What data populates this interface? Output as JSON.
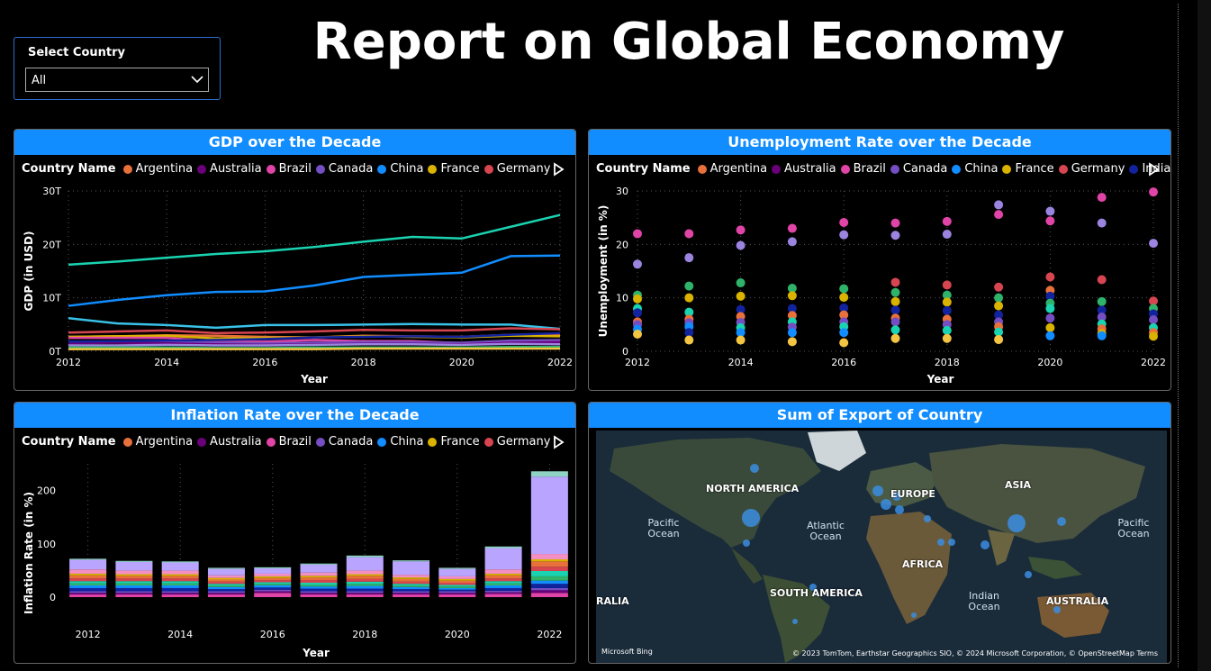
{
  "slicer": {
    "label": "Select Country",
    "value": "All"
  },
  "page_title": "Report on Global Economy",
  "legend_title": "Country Name",
  "legend_countries": [
    {
      "name": "Argentina",
      "color": "#e8703a"
    },
    {
      "name": "Australia",
      "color": "#6b007b"
    },
    {
      "name": "Brazil",
      "color": "#e044a7"
    },
    {
      "name": "Canada",
      "color": "#744ec2"
    },
    {
      "name": "China",
      "color": "#118dff"
    },
    {
      "name": "France",
      "color": "#d9b300"
    },
    {
      "name": "Germany",
      "color": "#d64550"
    },
    {
      "name": "India",
      "color": "#12239e"
    }
  ],
  "chart_data": [
    {
      "id": "gdp",
      "type": "line",
      "title": "GDP over the Decade",
      "xlabel": "Year",
      "ylabel": "GDP (in USD)",
      "x": [
        2012,
        2013,
        2014,
        2015,
        2016,
        2017,
        2018,
        2019,
        2020,
        2021,
        2022
      ],
      "x_ticks": [
        "2012",
        "2014",
        "2016",
        "2018",
        "2020",
        "2022"
      ],
      "y_ticks": [
        "0T",
        "10T",
        "20T",
        "30T"
      ],
      "ylim": [
        0,
        30
      ],
      "grid": true,
      "series": [
        {
          "color": "#1ad3b0",
          "values": [
            16.2,
            16.8,
            17.5,
            18.2,
            18.7,
            19.5,
            20.5,
            21.4,
            21.1,
            23.3,
            25.5
          ]
        },
        {
          "color": "#118dff",
          "values": [
            8.5,
            9.6,
            10.5,
            11.1,
            11.2,
            12.3,
            13.9,
            14.3,
            14.7,
            17.8,
            17.9
          ]
        },
        {
          "color": "#39c1e8",
          "values": [
            6.2,
            5.2,
            4.9,
            4.4,
            4.9,
            4.9,
            5.0,
            5.1,
            5.0,
            5.0,
            4.2
          ]
        },
        {
          "color": "#d64550",
          "values": [
            3.5,
            3.7,
            3.9,
            3.4,
            3.5,
            3.7,
            4.0,
            3.9,
            3.9,
            4.3,
            4.1
          ]
        },
        {
          "color": "#e8703a",
          "values": [
            2.7,
            2.8,
            3.0,
            2.9,
            2.7,
            2.6,
            2.9,
            2.8,
            2.7,
            3.1,
            3.1
          ]
        },
        {
          "color": "#d9b300",
          "values": [
            2.7,
            2.8,
            2.9,
            2.4,
            2.5,
            2.6,
            2.8,
            2.7,
            2.6,
            2.9,
            2.8
          ]
        },
        {
          "color": "#e044a7",
          "values": [
            2.5,
            2.5,
            2.5,
            1.8,
            1.8,
            2.1,
            1.9,
            1.9,
            1.5,
            1.7,
            1.9
          ]
        },
        {
          "color": "#744ec2",
          "values": [
            1.8,
            1.8,
            1.8,
            1.6,
            1.5,
            1.6,
            1.7,
            1.7,
            1.6,
            2.0,
            2.1
          ]
        },
        {
          "color": "#6b007b",
          "values": [
            1.5,
            1.6,
            1.5,
            1.3,
            1.2,
            1.3,
            1.4,
            1.4,
            1.3,
            1.6,
            1.7
          ]
        },
        {
          "color": "#12239e",
          "values": [
            1.8,
            1.9,
            2.0,
            2.1,
            2.3,
            2.6,
            2.7,
            2.8,
            2.7,
            3.1,
            3.4
          ]
        },
        {
          "color": "#9b84e0",
          "values": [
            1.1,
            1.1,
            1.2,
            1.1,
            1.1,
            1.2,
            1.3,
            1.3,
            1.2,
            1.4,
            1.3
          ]
        },
        {
          "color": "#2fb36b",
          "values": [
            0.7,
            0.7,
            0.7,
            0.6,
            0.6,
            0.7,
            0.7,
            0.7,
            0.7,
            0.8,
            0.8
          ]
        },
        {
          "color": "#f4c542",
          "values": [
            0.4,
            0.4,
            0.4,
            0.4,
            0.4,
            0.4,
            0.5,
            0.5,
            0.5,
            0.5,
            0.5
          ]
        }
      ]
    },
    {
      "id": "unemployment",
      "type": "scatter",
      "title": "Unemployment Rate over the Decade",
      "xlabel": "Year",
      "ylabel": "Unemployment (in %)",
      "x_ticks": [
        "2012",
        "2014",
        "2016",
        "2018",
        "2020",
        "2022"
      ],
      "y_ticks": [
        "0",
        "10",
        "20",
        "30"
      ],
      "ylim": [
        0,
        30
      ],
      "grid": true,
      "points": [
        {
          "x": 2012,
          "y": 22.0,
          "color": "#e044a7"
        },
        {
          "x": 2012,
          "y": 16.3,
          "color": "#9b84e0"
        },
        {
          "x": 2012,
          "y": 10.5,
          "color": "#2fb36b"
        },
        {
          "x": 2012,
          "y": 9.8,
          "color": "#d9b300"
        },
        {
          "x": 2012,
          "y": 8.0,
          "color": "#1ad3b0"
        },
        {
          "x": 2012,
          "y": 7.2,
          "color": "#12239e"
        },
        {
          "x": 2012,
          "y": 5.5,
          "color": "#e8703a"
        },
        {
          "x": 2012,
          "y": 5.0,
          "color": "#744ec2"
        },
        {
          "x": 2012,
          "y": 4.1,
          "color": "#118dff"
        },
        {
          "x": 2012,
          "y": 3.2,
          "color": "#f4c542"
        },
        {
          "x": 2013,
          "y": 22.0,
          "color": "#e044a7"
        },
        {
          "x": 2013,
          "y": 17.5,
          "color": "#9b84e0"
        },
        {
          "x": 2013,
          "y": 12.2,
          "color": "#2fb36b"
        },
        {
          "x": 2013,
          "y": 10.0,
          "color": "#d9b300"
        },
        {
          "x": 2013,
          "y": 7.3,
          "color": "#1ad3b0"
        },
        {
          "x": 2013,
          "y": 6.0,
          "color": "#e8703a"
        },
        {
          "x": 2013,
          "y": 5.3,
          "color": "#744ec2"
        },
        {
          "x": 2013,
          "y": 4.6,
          "color": "#118dff"
        },
        {
          "x": 2013,
          "y": 3.5,
          "color": "#12239e"
        },
        {
          "x": 2013,
          "y": 2.1,
          "color": "#f4c542"
        },
        {
          "x": 2014,
          "y": 22.7,
          "color": "#e044a7"
        },
        {
          "x": 2014,
          "y": 19.8,
          "color": "#9b84e0"
        },
        {
          "x": 2014,
          "y": 12.8,
          "color": "#2fb36b"
        },
        {
          "x": 2014,
          "y": 10.3,
          "color": "#d9b300"
        },
        {
          "x": 2014,
          "y": 7.8,
          "color": "#12239e"
        },
        {
          "x": 2014,
          "y": 6.5,
          "color": "#e8703a"
        },
        {
          "x": 2014,
          "y": 5.4,
          "color": "#744ec2"
        },
        {
          "x": 2014,
          "y": 4.4,
          "color": "#1ad3b0"
        },
        {
          "x": 2014,
          "y": 3.5,
          "color": "#118dff"
        },
        {
          "x": 2014,
          "y": 2.1,
          "color": "#f4c542"
        },
        {
          "x": 2015,
          "y": 23.0,
          "color": "#e044a7"
        },
        {
          "x": 2015,
          "y": 20.5,
          "color": "#9b84e0"
        },
        {
          "x": 2015,
          "y": 11.8,
          "color": "#2fb36b"
        },
        {
          "x": 2015,
          "y": 10.4,
          "color": "#d9b300"
        },
        {
          "x": 2015,
          "y": 8.0,
          "color": "#12239e"
        },
        {
          "x": 2015,
          "y": 6.7,
          "color": "#e8703a"
        },
        {
          "x": 2015,
          "y": 5.5,
          "color": "#1ad3b0"
        },
        {
          "x": 2015,
          "y": 4.5,
          "color": "#744ec2"
        },
        {
          "x": 2015,
          "y": 3.5,
          "color": "#118dff"
        },
        {
          "x": 2015,
          "y": 1.8,
          "color": "#f4c542"
        },
        {
          "x": 2016,
          "y": 24.1,
          "color": "#e044a7"
        },
        {
          "x": 2016,
          "y": 21.8,
          "color": "#9b84e0"
        },
        {
          "x": 2016,
          "y": 11.7,
          "color": "#2fb36b"
        },
        {
          "x": 2016,
          "y": 10.1,
          "color": "#d9b300"
        },
        {
          "x": 2016,
          "y": 8.1,
          "color": "#12239e"
        },
        {
          "x": 2016,
          "y": 6.8,
          "color": "#e8703a"
        },
        {
          "x": 2016,
          "y": 5.5,
          "color": "#744ec2"
        },
        {
          "x": 2016,
          "y": 4.6,
          "color": "#1ad3b0"
        },
        {
          "x": 2016,
          "y": 3.5,
          "color": "#118dff"
        },
        {
          "x": 2016,
          "y": 1.6,
          "color": "#f4c542"
        },
        {
          "x": 2017,
          "y": 24.0,
          "color": "#e044a7"
        },
        {
          "x": 2017,
          "y": 21.7,
          "color": "#9b84e0"
        },
        {
          "x": 2017,
          "y": 12.9,
          "color": "#d64550"
        },
        {
          "x": 2017,
          "y": 11.0,
          "color": "#2fb36b"
        },
        {
          "x": 2017,
          "y": 9.3,
          "color": "#d9b300"
        },
        {
          "x": 2017,
          "y": 7.7,
          "color": "#12239e"
        },
        {
          "x": 2017,
          "y": 6.2,
          "color": "#e8703a"
        },
        {
          "x": 2017,
          "y": 5.5,
          "color": "#744ec2"
        },
        {
          "x": 2017,
          "y": 4.0,
          "color": "#1ad3b0"
        },
        {
          "x": 2017,
          "y": 2.4,
          "color": "#f4c542"
        },
        {
          "x": 2018,
          "y": 24.3,
          "color": "#e044a7"
        },
        {
          "x": 2018,
          "y": 21.9,
          "color": "#9b84e0"
        },
        {
          "x": 2018,
          "y": 12.4,
          "color": "#d64550"
        },
        {
          "x": 2018,
          "y": 10.5,
          "color": "#2fb36b"
        },
        {
          "x": 2018,
          "y": 9.2,
          "color": "#d9b300"
        },
        {
          "x": 2018,
          "y": 7.6,
          "color": "#12239e"
        },
        {
          "x": 2018,
          "y": 6.0,
          "color": "#e8703a"
        },
        {
          "x": 2018,
          "y": 5.0,
          "color": "#744ec2"
        },
        {
          "x": 2018,
          "y": 3.9,
          "color": "#1ad3b0"
        },
        {
          "x": 2018,
          "y": 2.4,
          "color": "#f4c542"
        },
        {
          "x": 2019,
          "y": 27.4,
          "color": "#9b84e0"
        },
        {
          "x": 2019,
          "y": 25.6,
          "color": "#e044a7"
        },
        {
          "x": 2019,
          "y": 12.0,
          "color": "#d64550"
        },
        {
          "x": 2019,
          "y": 10.0,
          "color": "#2fb36b"
        },
        {
          "x": 2019,
          "y": 8.5,
          "color": "#d9b300"
        },
        {
          "x": 2019,
          "y": 6.8,
          "color": "#12239e"
        },
        {
          "x": 2019,
          "y": 5.5,
          "color": "#744ec2"
        },
        {
          "x": 2019,
          "y": 4.6,
          "color": "#e8703a"
        },
        {
          "x": 2019,
          "y": 3.6,
          "color": "#1ad3b0"
        },
        {
          "x": 2019,
          "y": 2.2,
          "color": "#f4c542"
        },
        {
          "x": 2020,
          "y": 26.2,
          "color": "#9b84e0"
        },
        {
          "x": 2020,
          "y": 24.4,
          "color": "#e044a7"
        },
        {
          "x": 2020,
          "y": 13.9,
          "color": "#d64550"
        },
        {
          "x": 2020,
          "y": 11.4,
          "color": "#e8703a"
        },
        {
          "x": 2020,
          "y": 10.3,
          "color": "#12239e"
        },
        {
          "x": 2020,
          "y": 9.0,
          "color": "#2fb36b"
        },
        {
          "x": 2020,
          "y": 8.0,
          "color": "#1ad3b0"
        },
        {
          "x": 2020,
          "y": 6.2,
          "color": "#744ec2"
        },
        {
          "x": 2020,
          "y": 4.4,
          "color": "#d9b300"
        },
        {
          "x": 2020,
          "y": 2.9,
          "color": "#118dff"
        },
        {
          "x": 2021,
          "y": 28.8,
          "color": "#e044a7"
        },
        {
          "x": 2021,
          "y": 24.0,
          "color": "#9b84e0"
        },
        {
          "x": 2021,
          "y": 13.4,
          "color": "#d64550"
        },
        {
          "x": 2021,
          "y": 9.3,
          "color": "#2fb36b"
        },
        {
          "x": 2021,
          "y": 7.7,
          "color": "#12239e"
        },
        {
          "x": 2021,
          "y": 6.4,
          "color": "#744ec2"
        },
        {
          "x": 2021,
          "y": 5.1,
          "color": "#1ad3b0"
        },
        {
          "x": 2021,
          "y": 4.2,
          "color": "#e8703a"
        },
        {
          "x": 2021,
          "y": 3.3,
          "color": "#d9b300"
        },
        {
          "x": 2021,
          "y": 2.9,
          "color": "#118dff"
        },
        {
          "x": 2022,
          "y": 29.8,
          "color": "#e044a7"
        },
        {
          "x": 2022,
          "y": 20.2,
          "color": "#9b84e0"
        },
        {
          "x": 2022,
          "y": 9.4,
          "color": "#d64550"
        },
        {
          "x": 2022,
          "y": 8.0,
          "color": "#2fb36b"
        },
        {
          "x": 2022,
          "y": 7.0,
          "color": "#12239e"
        },
        {
          "x": 2022,
          "y": 5.9,
          "color": "#744ec2"
        },
        {
          "x": 2022,
          "y": 4.4,
          "color": "#1ad3b0"
        },
        {
          "x": 2022,
          "y": 3.5,
          "color": "#e8703a"
        },
        {
          "x": 2022,
          "y": 2.8,
          "color": "#d9b300"
        }
      ]
    },
    {
      "id": "inflation",
      "type": "bar",
      "stacked": true,
      "title": "Inflation Rate over the Decade",
      "xlabel": "Year",
      "ylabel": "Inflation Rate (in %)",
      "categories": [
        2012,
        2013,
        2014,
        2015,
        2016,
        2017,
        2018,
        2019,
        2020,
        2021,
        2022
      ],
      "x_ticks": [
        "2012",
        "2014",
        "2016",
        "2018",
        "2020",
        "2022"
      ],
      "y_ticks": [
        "0",
        "100",
        "200"
      ],
      "ylim": [
        0,
        250
      ],
      "grid": true,
      "series": [
        {
          "color": "#e044a7",
          "values": [
            5,
            5,
            5,
            5,
            8,
            5,
            5,
            5,
            5,
            6,
            8
          ]
        },
        {
          "color": "#6b007b",
          "values": [
            3,
            3,
            3,
            3,
            3,
            3,
            3,
            3,
            3,
            3,
            5
          ]
        },
        {
          "color": "#744ec2",
          "values": [
            3,
            3,
            3,
            3,
            3,
            3,
            3,
            3,
            3,
            3,
            4
          ]
        },
        {
          "color": "#12239e",
          "values": [
            6,
            6,
            6,
            4,
            4,
            5,
            5,
            4,
            3,
            5,
            8
          ]
        },
        {
          "color": "#118dff",
          "values": [
            5,
            5,
            5,
            4,
            4,
            4,
            5,
            4,
            3,
            5,
            6
          ]
        },
        {
          "color": "#2fb36b",
          "values": [
            4,
            4,
            4,
            3,
            3,
            3,
            4,
            3,
            3,
            4,
            8
          ]
        },
        {
          "color": "#1ad3b0",
          "values": [
            4,
            4,
            4,
            3,
            3,
            4,
            4,
            3,
            3,
            4,
            10
          ]
        },
        {
          "color": "#d64550",
          "values": [
            5,
            5,
            5,
            4,
            4,
            5,
            5,
            4,
            4,
            5,
            8
          ]
        },
        {
          "color": "#e8703a",
          "values": [
            6,
            5,
            5,
            4,
            4,
            5,
            6,
            5,
            4,
            6,
            10
          ]
        },
        {
          "color": "#d9b300",
          "values": [
            3,
            3,
            3,
            3,
            3,
            3,
            3,
            3,
            3,
            3,
            4
          ]
        },
        {
          "color": "#f48fc4",
          "values": [
            8,
            7,
            7,
            5,
            5,
            6,
            7,
            5,
            5,
            8,
            10
          ]
        },
        {
          "color": "#b9a4ff",
          "values": [
            18,
            16,
            15,
            12,
            10,
            15,
            25,
            25,
            14,
            40,
            145
          ]
        },
        {
          "color": "#8fd3c4",
          "values": [
            2,
            2,
            2,
            2,
            2,
            2,
            3,
            2,
            2,
            3,
            10
          ]
        }
      ]
    }
  ],
  "map": {
    "title": "Sum of Export of Country",
    "labels": {
      "north_america": "NORTH AMERICA",
      "europe": "EUROPE",
      "asia": "ASIA",
      "africa": "AFRICA",
      "south_america": "SOUTH AMERICA",
      "australia": "AUSTRALIA",
      "ralia": "RALIA"
    },
    "oceans": {
      "pacific_left": "Pacific Ocean",
      "atlantic": "Atlantic Ocean",
      "indian": "Indian Ocean",
      "pacific_right": "Pacific Ocean"
    },
    "bing": "Microsoft Bing",
    "credit": "© 2023 TomTom, Earthstar Geographics SIO, © 2024 Microsoft Corporation, © OpenStreetMap  Terms",
    "bubble_color": "#3b8de0"
  }
}
